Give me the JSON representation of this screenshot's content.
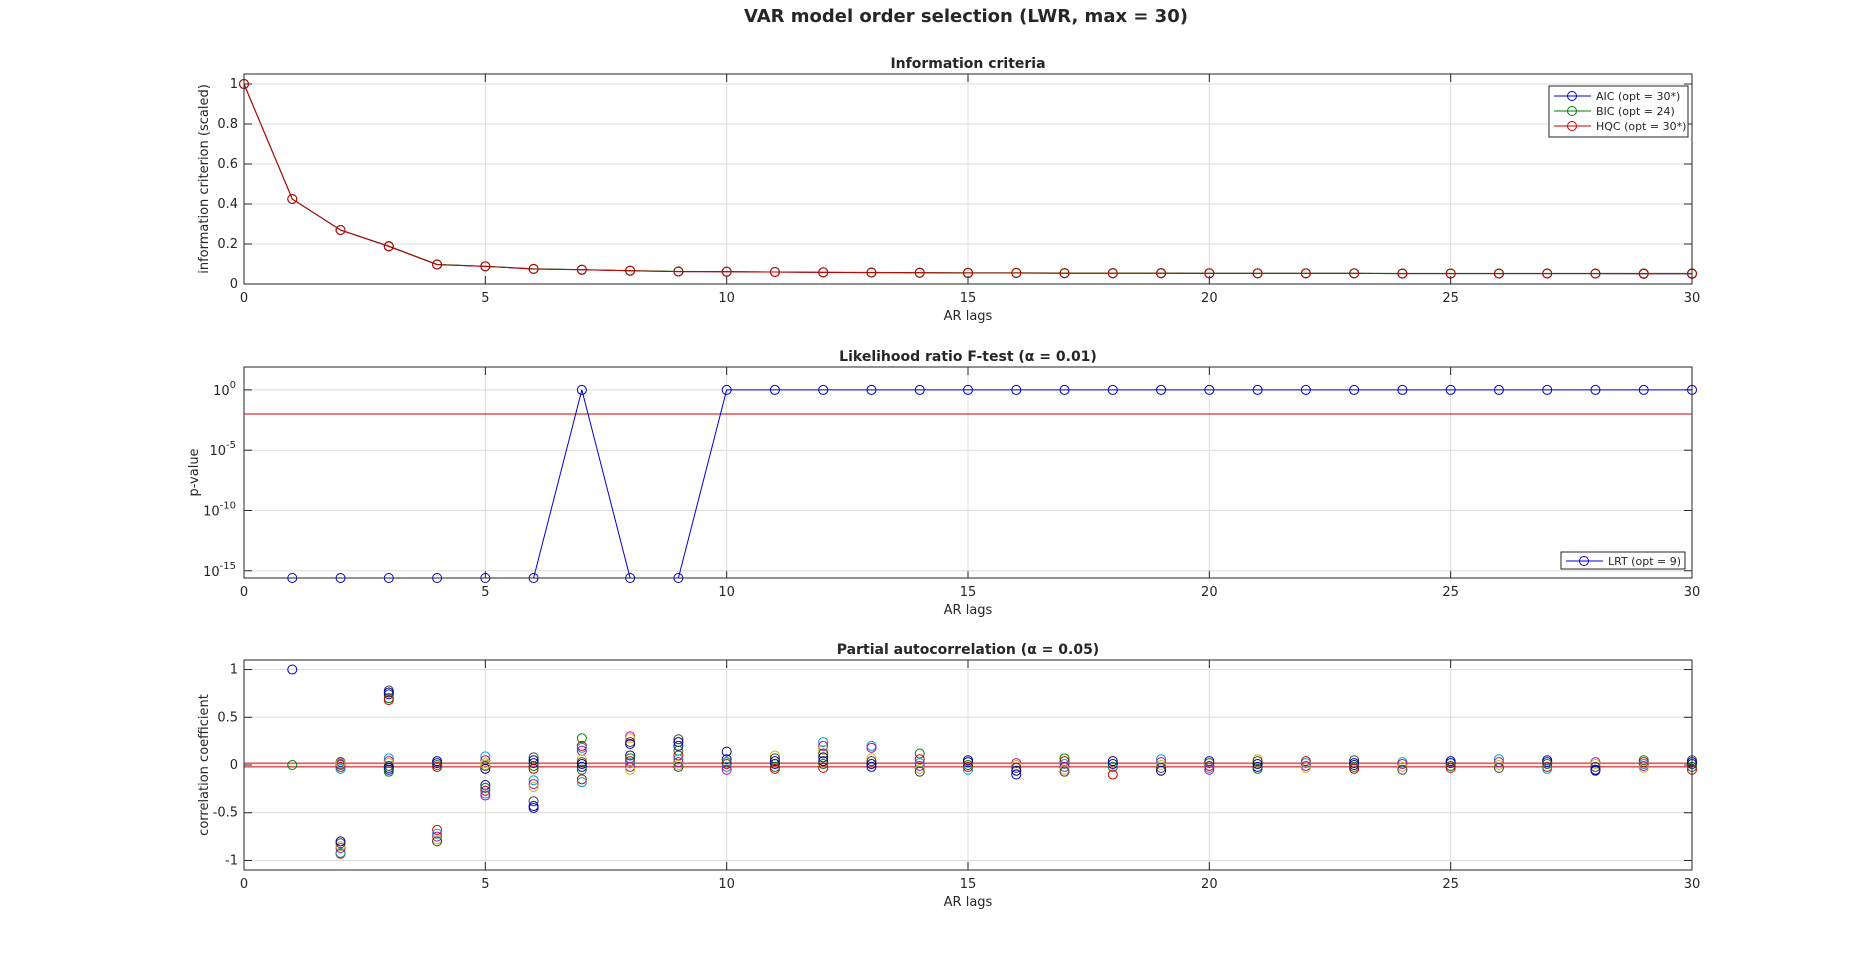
{
  "figure": {
    "title": "VAR model order selection (LWR, max = 30)"
  },
  "chart_data": [
    {
      "type": "line",
      "title": "Information criteria",
      "xlabel": "AR lags",
      "ylabel": "information criterion (scaled)",
      "xlim": [
        0,
        30
      ],
      "ylim": [
        0,
        1.05
      ],
      "xticks": [
        0,
        5,
        10,
        15,
        20,
        25,
        30
      ],
      "yticks": [
        0,
        0.2,
        0.4,
        0.6,
        0.8,
        1
      ],
      "ytick_labels": [
        "0",
        "0.2",
        "0.4",
        "0.6",
        "0.8",
        "1"
      ],
      "grid": true,
      "legend_location": "top-right",
      "series": [
        {
          "name": "AIC (opt = 30*)",
          "color": "#0000cc",
          "x": [
            0,
            1,
            2,
            3,
            4,
            5,
            6,
            7,
            8,
            9,
            10,
            11,
            12,
            13,
            14,
            15,
            16,
            17,
            18,
            19,
            20,
            21,
            22,
            23,
            24,
            25,
            26,
            27,
            28,
            29,
            30
          ],
          "y": [
            1.0,
            0.425,
            0.27,
            0.188,
            0.097,
            0.088,
            0.075,
            0.071,
            0.066,
            0.062,
            0.061,
            0.06,
            0.058,
            0.057,
            0.056,
            0.055,
            0.055,
            0.054,
            0.054,
            0.054,
            0.053,
            0.053,
            0.053,
            0.053,
            0.052,
            0.052,
            0.052,
            0.052,
            0.052,
            0.051,
            0.051
          ]
        },
        {
          "name": "BIC (opt = 24)",
          "color": "#007f00",
          "x": [
            0,
            1,
            2,
            3,
            4,
            5,
            6,
            7,
            8,
            9,
            10,
            11,
            12,
            13,
            14,
            15,
            16,
            17,
            18,
            19,
            20,
            21,
            22,
            23,
            24,
            25,
            26,
            27,
            28,
            29,
            30
          ],
          "y": [
            1.0,
            0.425,
            0.27,
            0.19,
            0.098,
            0.089,
            0.076,
            0.072,
            0.067,
            0.063,
            0.062,
            0.06,
            0.059,
            0.058,
            0.057,
            0.056,
            0.056,
            0.055,
            0.055,
            0.055,
            0.054,
            0.054,
            0.054,
            0.054,
            0.053,
            0.053,
            0.053,
            0.053,
            0.053,
            0.053,
            0.053
          ]
        },
        {
          "name": "HQC (opt = 30*)",
          "color": "#cc0000",
          "x": [
            0,
            1,
            2,
            3,
            4,
            5,
            6,
            7,
            8,
            9,
            10,
            11,
            12,
            13,
            14,
            15,
            16,
            17,
            18,
            19,
            20,
            21,
            22,
            23,
            24,
            25,
            26,
            27,
            28,
            29,
            30
          ],
          "y": [
            1.0,
            0.425,
            0.27,
            0.188,
            0.097,
            0.088,
            0.075,
            0.071,
            0.066,
            0.062,
            0.061,
            0.06,
            0.058,
            0.057,
            0.056,
            0.055,
            0.055,
            0.054,
            0.054,
            0.054,
            0.053,
            0.053,
            0.053,
            0.053,
            0.052,
            0.052,
            0.052,
            0.052,
            0.052,
            0.051,
            0.051
          ]
        }
      ]
    },
    {
      "type": "line",
      "title": "Likelihood ratio F-test (α = 0.01)",
      "xlabel": "AR lags",
      "ylabel": "p-value",
      "yscale": "log",
      "xlim": [
        0,
        30
      ],
      "ylim_log10": [
        -15.6,
        1.9
      ],
      "xticks": [
        0,
        5,
        10,
        15,
        20,
        25,
        30
      ],
      "yticks_log10": [
        0,
        -5,
        -10,
        -15
      ],
      "ytick_labels": [
        {
          "base": "10",
          "exp": "0"
        },
        {
          "base": "10",
          "exp": "-5"
        },
        {
          "base": "10",
          "exp": "-10"
        },
        {
          "base": "10",
          "exp": "-15"
        }
      ],
      "grid": true,
      "legend_location": "bottom-right",
      "threshold": {
        "value": 0.01,
        "log10": -2,
        "color": "#cc0000"
      },
      "series": [
        {
          "name": "LRT (opt = 9)",
          "color": "#0000cc",
          "x": [
            1,
            2,
            3,
            4,
            5,
            6,
            7,
            8,
            9,
            10,
            11,
            12,
            13,
            14,
            15,
            16,
            17,
            18,
            19,
            20,
            21,
            22,
            23,
            24,
            25,
            26,
            27,
            28,
            29,
            30
          ],
          "y_log10": [
            -15.6,
            -15.6,
            -15.6,
            -15.6,
            -15.6,
            -15.6,
            0,
            -15.6,
            -15.6,
            0,
            0,
            0,
            0,
            0,
            0,
            0,
            0,
            0,
            0,
            0,
            0,
            0,
            0,
            0,
            0,
            0,
            0,
            0,
            0,
            0
          ]
        }
      ]
    },
    {
      "type": "scatter",
      "title": "Partial autocorrelation (α = 0.05)",
      "xlabel": "AR lags",
      "ylabel": "correlation coefficient",
      "xlim": [
        0,
        30
      ],
      "ylim": [
        -1.1,
        1.1
      ],
      "xticks": [
        0,
        5,
        10,
        15,
        20,
        25,
        30
      ],
      "yticks": [
        -1,
        -0.5,
        0,
        0.5,
        1
      ],
      "ytick_labels": [
        "-1",
        "-0.5",
        "0",
        "0.5",
        "1"
      ],
      "grid": true,
      "confidence_band": {
        "lower": -0.02,
        "upper": 0.02,
        "color": "#cc0000"
      },
      "colors": [
        "#0000cc",
        "#007f00",
        "#cc0000",
        "#00a0bf",
        "#bf00bf",
        "#bfbf00",
        "#3f3f3f",
        "#000080"
      ],
      "points": [
        {
          "x": 1,
          "y": [
            1.0,
            0.0
          ]
        },
        {
          "x": 2,
          "y": [
            -0.93,
            -0.92,
            -0.87,
            -0.85,
            -0.82,
            -0.8,
            0.03,
            0.01,
            -0.02,
            -0.04,
            0.0,
            0.02
          ]
        },
        {
          "x": 3,
          "y": [
            0.78,
            0.76,
            0.74,
            0.7,
            0.68,
            0.07,
            0.04,
            0.02,
            -0.01,
            -0.03,
            -0.05,
            -0.07
          ]
        },
        {
          "x": 4,
          "y": [
            -0.68,
            -0.72,
            -0.75,
            -0.78,
            -0.8,
            0.04,
            0.02,
            0.0,
            -0.02
          ]
        },
        {
          "x": 5,
          "y": [
            0.09,
            0.05,
            0.02,
            -0.01,
            -0.04,
            -0.21,
            -0.24,
            -0.27,
            -0.3,
            -0.32,
            0.0
          ]
        },
        {
          "x": 6,
          "y": [
            0.08,
            0.05,
            0.02,
            -0.01,
            -0.04,
            -0.16,
            -0.2,
            -0.23,
            -0.38,
            -0.43,
            -0.45
          ]
        },
        {
          "x": 7,
          "y": [
            0.28,
            0.2,
            0.18,
            0.15,
            0.06,
            0.03,
            0.01,
            -0.02,
            -0.05,
            -0.15,
            -0.18
          ]
        },
        {
          "x": 8,
          "y": [
            0.3,
            0.28,
            0.24,
            0.22,
            0.1,
            0.07,
            0.04,
            0.02,
            -0.02,
            -0.05
          ]
        },
        {
          "x": 9,
          "y": [
            0.27,
            0.24,
            0.2,
            0.15,
            0.1,
            0.06,
            0.03,
            0.0,
            -0.02
          ]
        },
        {
          "x": 10,
          "y": [
            0.14,
            0.06,
            0.03,
            0.01,
            -0.02,
            -0.05
          ]
        },
        {
          "x": 11,
          "y": [
            0.1,
            0.07,
            0.04,
            0.01,
            -0.02,
            -0.04
          ]
        },
        {
          "x": 12,
          "y": [
            0.24,
            0.2,
            0.16,
            0.12,
            0.08,
            0.04,
            0.01,
            -0.03
          ]
        },
        {
          "x": 13,
          "y": [
            0.2,
            0.18,
            0.07,
            0.04,
            0.01,
            -0.02
          ]
        },
        {
          "x": 14,
          "y": [
            0.12,
            0.06,
            0.02,
            -0.01,
            -0.04,
            -0.07
          ]
        },
        {
          "x": 15,
          "y": [
            0.05,
            0.03,
            0.0,
            -0.02,
            -0.05
          ]
        },
        {
          "x": 16,
          "y": [
            0.02,
            0.0,
            -0.03,
            -0.06,
            -0.1
          ]
        },
        {
          "x": 17,
          "y": [
            0.07,
            0.04,
            0.01,
            -0.02,
            -0.05,
            -0.07
          ]
        },
        {
          "x": 18,
          "y": [
            0.04,
            0.01,
            -0.02,
            -0.1
          ]
        },
        {
          "x": 19,
          "y": [
            0.06,
            0.03,
            0.0,
            -0.03,
            -0.06
          ]
        },
        {
          "x": 20,
          "y": [
            0.04,
            0.02,
            -0.01,
            -0.03,
            -0.05
          ]
        },
        {
          "x": 21,
          "y": [
            0.06,
            0.04,
            0.01,
            -0.02,
            -0.04
          ]
        },
        {
          "x": 22,
          "y": [
            0.04,
            0.02,
            -0.01,
            -0.03
          ]
        },
        {
          "x": 23,
          "y": [
            0.05,
            0.02,
            0.0,
            -0.02,
            -0.04
          ]
        },
        {
          "x": 24,
          "y": [
            0.03,
            0.01,
            -0.02,
            -0.05
          ]
        },
        {
          "x": 25,
          "y": [
            0.04,
            0.02,
            -0.01,
            -0.03
          ]
        },
        {
          "x": 26,
          "y": [
            0.06,
            0.03,
            0.0,
            -0.03
          ]
        },
        {
          "x": 27,
          "y": [
            0.05,
            0.03,
            0.01,
            -0.02,
            -0.04
          ]
        },
        {
          "x": 28,
          "y": [
            0.03,
            0.01,
            -0.02,
            -0.05,
            -0.06
          ]
        },
        {
          "x": 29,
          "y": [
            0.05,
            0.03,
            0.01,
            -0.01,
            -0.03
          ]
        },
        {
          "x": 30,
          "y": [
            0.05,
            0.03,
            0.01,
            -0.02,
            -0.05
          ]
        }
      ]
    }
  ]
}
